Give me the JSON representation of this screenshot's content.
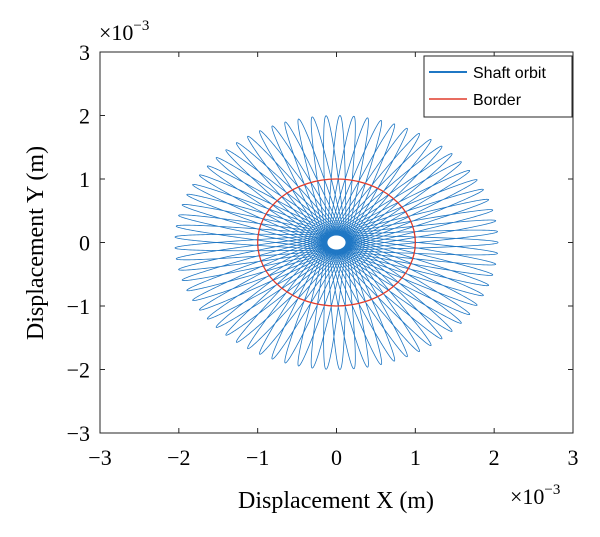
{
  "chart_data": {
    "type": "line",
    "xlabel": "Displacement X (m)",
    "ylabel": "Displacement Y (m)",
    "x_exponent_label": "×10",
    "x_exponent_sup": "−3",
    "y_exponent_label": "×10",
    "y_exponent_sup": "−3",
    "xlim": [
      -3,
      3
    ],
    "ylim": [
      -3,
      3
    ],
    "xticks": [
      -3,
      -2,
      -1,
      0,
      1,
      2,
      3
    ],
    "yticks": [
      -3,
      -2,
      -1,
      0,
      1,
      2,
      3
    ],
    "xtick_labels": [
      "−3",
      "−2",
      "−1",
      "0",
      "1",
      "2",
      "3"
    ],
    "ytick_labels": [
      "−3",
      "−2",
      "−1",
      "0",
      "1",
      "2",
      "3"
    ],
    "scale_note": "values in units of 1e-3 m",
    "grid": false,
    "legend_position": "top-right",
    "series": [
      {
        "name": "Shaft orbit",
        "color": "#1f77c4",
        "kind": "epicycle orbit",
        "x_semi_axis_outer": 2.05,
        "y_semi_axis_outer": 2.0,
        "inner_hole_radius": 0.12,
        "loops": 36
      },
      {
        "name": "Border",
        "color": "#e03b2b",
        "kind": "circle",
        "center": [
          0,
          0
        ],
        "radius": 1.0
      }
    ]
  }
}
